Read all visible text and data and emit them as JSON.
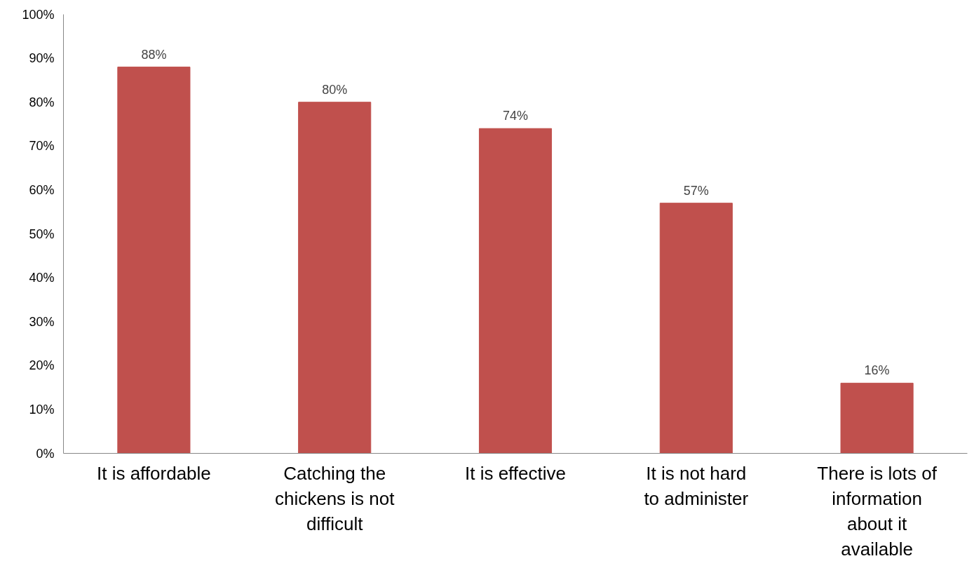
{
  "chart_data": {
    "type": "bar",
    "categories": [
      "It is affordable",
      "Catching the chickens is not difficult",
      "It is effective",
      "It is not hard to administer",
      "There is lots of information about it available"
    ],
    "values": [
      88,
      80,
      74,
      57,
      16
    ],
    "value_labels": [
      "88%",
      "80%",
      "74%",
      "57%",
      "16%"
    ],
    "color": "#c0504d",
    "ylim": [
      0,
      100
    ],
    "yticks": [
      {
        "value": 0,
        "label": "0%"
      },
      {
        "value": 10,
        "label": "10%"
      },
      {
        "value": 20,
        "label": "20%"
      },
      {
        "value": 30,
        "label": "30%"
      },
      {
        "value": 40,
        "label": "40%"
      },
      {
        "value": 50,
        "label": "50%"
      },
      {
        "value": 60,
        "label": "60%"
      },
      {
        "value": 70,
        "label": "70%"
      },
      {
        "value": 80,
        "label": "80%"
      },
      {
        "value": 90,
        "label": "90%"
      },
      {
        "value": 100,
        "label": "100%"
      }
    ],
    "grid": false
  }
}
